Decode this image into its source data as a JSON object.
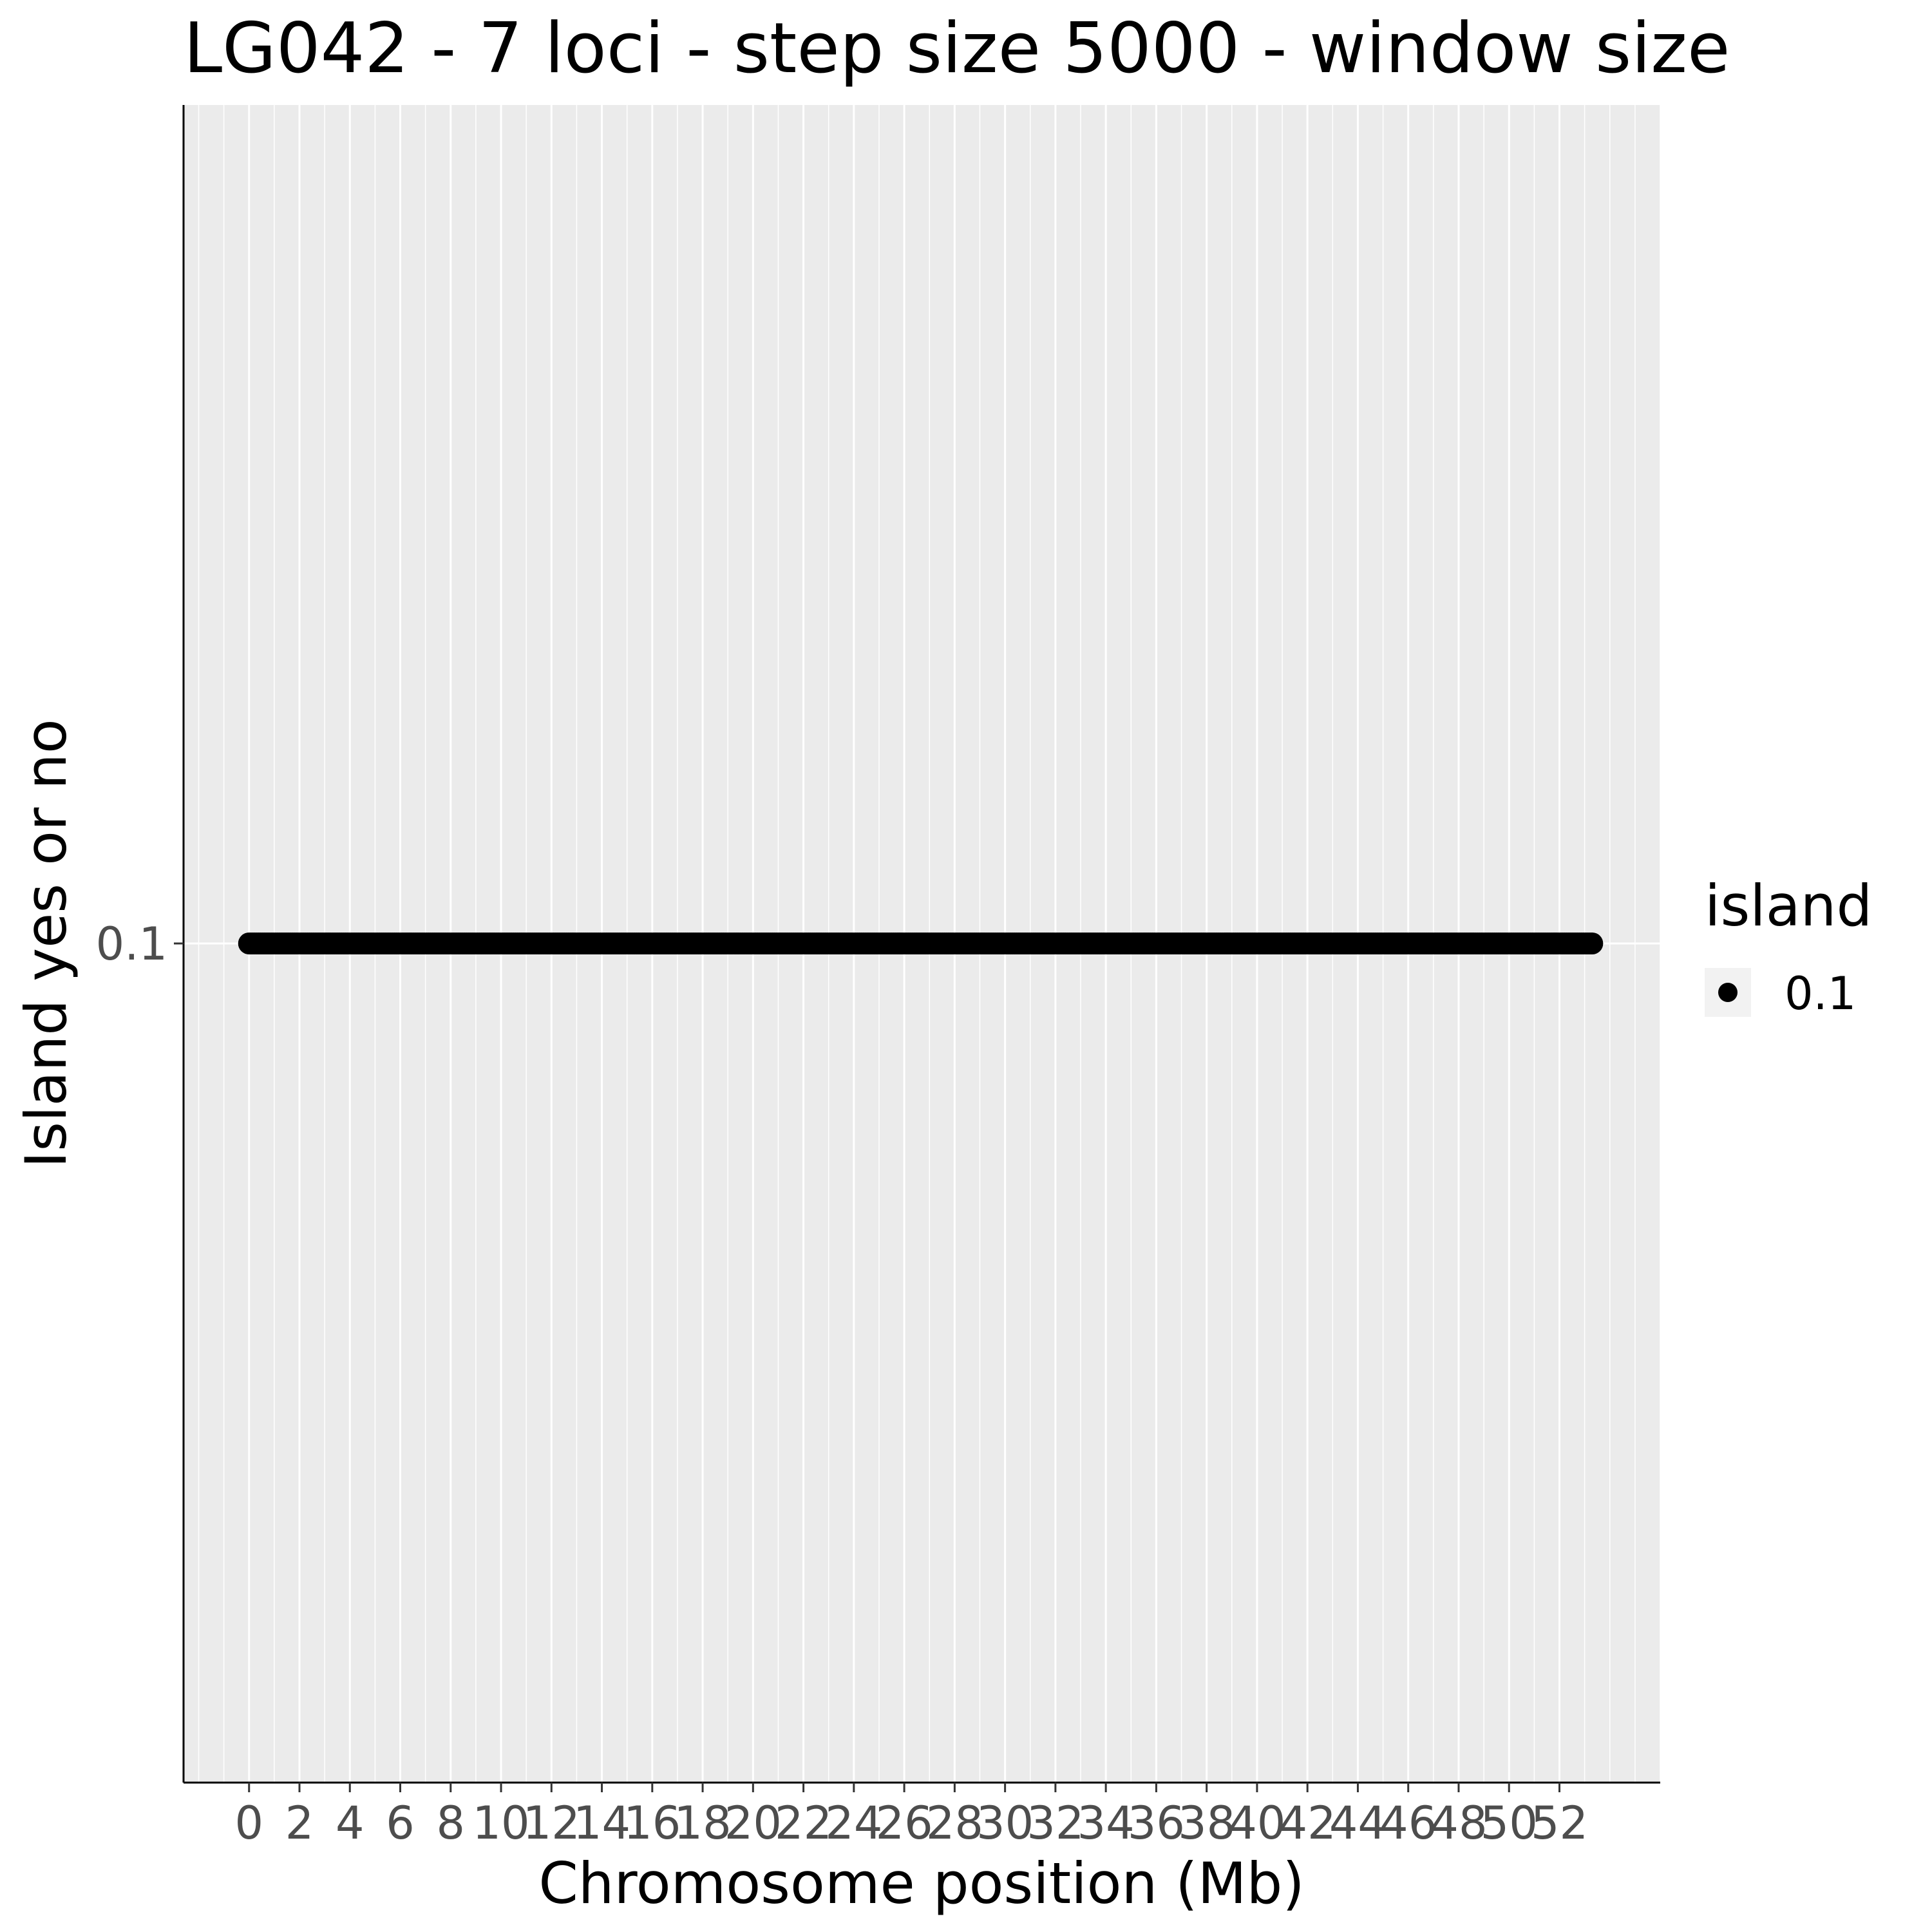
{
  "chart_data": {
    "type": "scatter",
    "title": "LG042 - 7 loci - step size 5000 - window size",
    "xlabel": "Chromosome position (Mb)",
    "ylabel": "Island yes or no",
    "x_ticks": [
      0,
      2,
      4,
      6,
      8,
      10,
      12,
      14,
      16,
      18,
      20,
      22,
      24,
      26,
      28,
      30,
      32,
      34,
      36,
      38,
      40,
      42,
      44,
      46,
      48,
      50,
      52
    ],
    "y_ticks": [
      "0.1"
    ],
    "xlim": [
      -2.6,
      56.0
    ],
    "x_minor_step": 1,
    "grid": true,
    "series": [
      {
        "name": "0.1",
        "color": "#000000",
        "y": 0.1,
        "x_start": 0.0,
        "x_end": 53.3,
        "x_step": 0.005
      }
    ],
    "legend": {
      "title": "island",
      "position": "right",
      "items": [
        {
          "label": "0.1",
          "color": "#000000"
        }
      ]
    },
    "colors": {
      "panel_background": "#ebebeb",
      "grid": "#ffffff",
      "axis": "#000000"
    }
  }
}
